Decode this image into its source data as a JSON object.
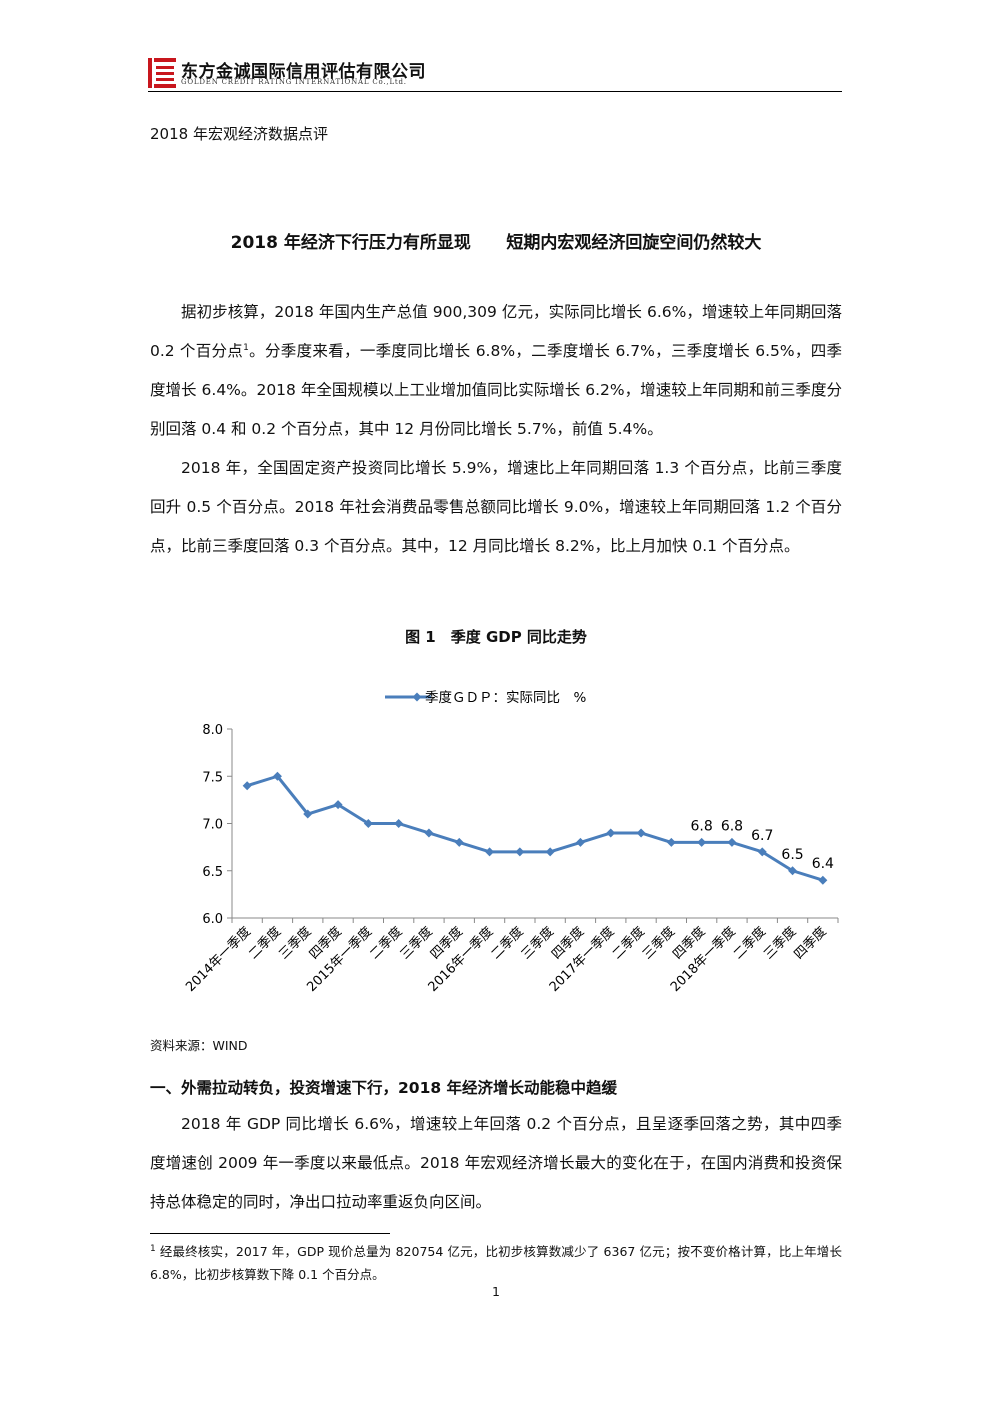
{
  "header": {
    "company": "东方金诚国际信用评估有限公司",
    "company_en": "GOLDEN CREDIT RATING INTERNATIONAL Co.,Ltd."
  },
  "doc_type": "2018 年宏观经济数据点评",
  "title": "2018 年经济下行压力有所显现      短期内宏观经济回旋空间仍然较大",
  "paragraph_1": {
    "before": "据初步核算，2018 年国内生产总值 900,309 亿元，实际同比增长 6.6%，增速较上年同期回落 0.2 个百分点",
    "note": "1",
    "after": "。分季度来看，一季度同比增长 6.8%，二季度增长 6.7%，三季度增长 6.5%，四季度增长 6.4%。2018 年全国规模以上工业增加值同比实际增长 6.2%，增速较上年同期和前三季度分别回落 0.4 和 0.2 个百分点，其中 12 月份同比增长 5.7%，前值 5.4%。"
  },
  "paragraph_2": "2018 年，全国固定资产投资同比增长 5.9%，增速比上年同期回落 1.3 个百分点，比前三季度回升 0.5 个百分点。2018 年社会消费品零售总额同比增长 9.0%，增速较上年同期回落 1.2 个百分点，比前三季度回落 0.3 个百分点。其中，12 月同比增长 8.2%，比上月加快 0.1 个百分点。",
  "figure_caption": "图 1　季度 GDP 同比走势",
  "chart_data": {
    "type": "line",
    "categories": [
      "2014年一季度",
      "二季度",
      "三季度",
      "四季度",
      "2015年一季度",
      "二季度",
      "三季度",
      "四季度",
      "2016年一季度",
      "二季度",
      "三季度",
      "四季度",
      "2017年一季度",
      "二季度",
      "三季度",
      "四季度",
      "2018年一季度",
      "二季度",
      "三季度",
      "四季度"
    ],
    "series": [
      {
        "name": "季度ＧＤＰ：实际同比　%",
        "color": "#4a7ebb",
        "values": [
          7.4,
          7.5,
          7.1,
          7.2,
          7.0,
          7.0,
          6.9,
          6.8,
          6.7,
          6.7,
          6.7,
          6.8,
          6.9,
          6.9,
          6.8,
          6.8,
          6.8,
          6.7,
          6.5,
          6.4
        ],
        "value_labels": [
          null,
          null,
          null,
          null,
          null,
          null,
          null,
          null,
          null,
          null,
          null,
          null,
          null,
          null,
          null,
          "6.8",
          "6.8",
          "6.7",
          "6.5",
          "6.4"
        ]
      }
    ],
    "ylim": [
      6.0,
      8.0
    ],
    "yticks": [
      {
        "value": 6.0,
        "label": "6.0"
      },
      6.5,
      {
        "value": 7.0,
        "label": "7.0"
      },
      7.5,
      {
        "value": 8.0,
        "label": "8.0"
      }
    ],
    "legend": "top"
  },
  "source": "资料来源：WIND",
  "section_1": {
    "heading": "一、外需拉动转负，投资增速下行，2018 年经济增长动能稳中趋缓",
    "paragraph": "2018 年 GDP 同比增长 6.6%，增速较上年回落 0.2 个百分点，且呈逐季回落之势，其中四季度增速创 2009 年一季度以来最低点。2018 年宏观经济增长最大的变化在于，在国内消费和投资保持总体稳定的同时，净出口拉动率重返负向区间。"
  },
  "footnote": {
    "mark": "1",
    "text": "经最终核实，2017 年，GDP 现价总量为 820754 亿元，比初步核算数减少了 6367 亿元；按不变价格计算，比上年增长 6.8%，比初步核算数下降 0.1 个百分点。"
  },
  "page_number": "1"
}
